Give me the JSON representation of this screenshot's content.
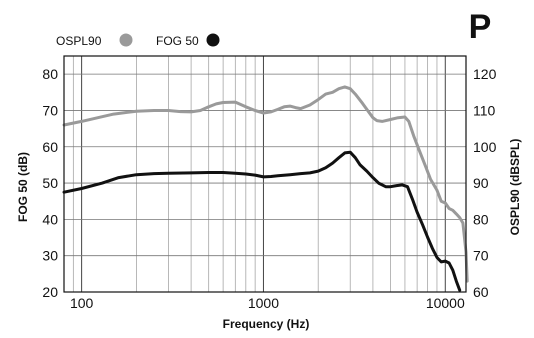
{
  "badge": "P",
  "chart_data": {
    "type": "line",
    "title": "",
    "xlabel": "Frequency (Hz)",
    "ylabel_left": "FOG 50 (dB)",
    "ylabel_right": "OSPL90 (dBSPL)",
    "xscale": "log",
    "xlim": [
      80,
      13000
    ],
    "ylim_left": [
      20,
      85
    ],
    "ylim_right": [
      60,
      125
    ],
    "x_ticks": [
      {
        "value": 100,
        "label": "100"
      },
      {
        "value": 1000,
        "label": "1000"
      },
      {
        "value": 10000,
        "label": "10000"
      }
    ],
    "y_ticks_left": [
      20,
      30,
      40,
      50,
      60,
      70,
      80
    ],
    "y_ticks_right": [
      60,
      70,
      80,
      90,
      100,
      110,
      120
    ],
    "grid": true,
    "legend_position": "top-left",
    "series": [
      {
        "name": "OSPL90",
        "axis": "right",
        "color": "#9a9a9a",
        "points": [
          [
            80,
            106
          ],
          [
            100,
            107
          ],
          [
            150,
            109
          ],
          [
            200,
            109.8
          ],
          [
            250,
            110
          ],
          [
            300,
            110
          ],
          [
            350,
            109.7
          ],
          [
            400,
            109.6
          ],
          [
            450,
            110
          ],
          [
            500,
            111
          ],
          [
            550,
            111.8
          ],
          [
            600,
            112.2
          ],
          [
            700,
            112.3
          ],
          [
            800,
            111
          ],
          [
            900,
            110
          ],
          [
            1000,
            109.3
          ],
          [
            1100,
            109.6
          ],
          [
            1200,
            110.3
          ],
          [
            1300,
            111
          ],
          [
            1400,
            111.2
          ],
          [
            1500,
            110.8
          ],
          [
            1600,
            110.5
          ],
          [
            1800,
            111.5
          ],
          [
            2000,
            113
          ],
          [
            2200,
            114.5
          ],
          [
            2400,
            115
          ],
          [
            2600,
            116
          ],
          [
            2800,
            116.5
          ],
          [
            3000,
            116
          ],
          [
            3200,
            114.5
          ],
          [
            3500,
            112
          ],
          [
            3800,
            109.5
          ],
          [
            4000,
            108
          ],
          [
            4200,
            107.2
          ],
          [
            4500,
            107
          ],
          [
            5000,
            107.5
          ],
          [
            5500,
            108
          ],
          [
            6000,
            108.2
          ],
          [
            6300,
            107
          ],
          [
            6700,
            103
          ],
          [
            7200,
            99
          ],
          [
            7800,
            94.5
          ],
          [
            8300,
            91
          ],
          [
            9000,
            88
          ],
          [
            9500,
            85
          ],
          [
            10000,
            84.5
          ],
          [
            10500,
            83
          ],
          [
            11000,
            82.5
          ],
          [
            11500,
            81.5
          ],
          [
            12000,
            80.5
          ],
          [
            12500,
            79
          ],
          [
            13000,
            71
          ],
          [
            13200,
            63
          ]
        ]
      },
      {
        "name": "FOG 50",
        "axis": "left",
        "color": "#111111",
        "points": [
          [
            80,
            47.5
          ],
          [
            100,
            48.5
          ],
          [
            130,
            50
          ],
          [
            160,
            51.5
          ],
          [
            200,
            52.3
          ],
          [
            250,
            52.6
          ],
          [
            300,
            52.7
          ],
          [
            400,
            52.8
          ],
          [
            500,
            52.9
          ],
          [
            600,
            52.9
          ],
          [
            700,
            52.7
          ],
          [
            800,
            52.5
          ],
          [
            900,
            52.2
          ],
          [
            1000,
            51.7
          ],
          [
            1100,
            51.8
          ],
          [
            1200,
            52
          ],
          [
            1400,
            52.3
          ],
          [
            1600,
            52.6
          ],
          [
            1800,
            52.8
          ],
          [
            2000,
            53.3
          ],
          [
            2200,
            54.2
          ],
          [
            2400,
            55.5
          ],
          [
            2600,
            57
          ],
          [
            2800,
            58.3
          ],
          [
            3000,
            58.5
          ],
          [
            3200,
            57
          ],
          [
            3400,
            55
          ],
          [
            3700,
            53.3
          ],
          [
            4000,
            51.5
          ],
          [
            4300,
            50
          ],
          [
            4700,
            49
          ],
          [
            5000,
            49
          ],
          [
            5400,
            49.3
          ],
          [
            5800,
            49.5
          ],
          [
            6200,
            49
          ],
          [
            6600,
            45.5
          ],
          [
            7000,
            42
          ],
          [
            7500,
            38.5
          ],
          [
            8000,
            35
          ],
          [
            8500,
            32
          ],
          [
            9000,
            29.5
          ],
          [
            9500,
            28.3
          ],
          [
            10000,
            28.5
          ],
          [
            10500,
            28
          ],
          [
            11000,
            26
          ],
          [
            11500,
            23
          ],
          [
            12000,
            20.5
          ]
        ]
      }
    ]
  }
}
